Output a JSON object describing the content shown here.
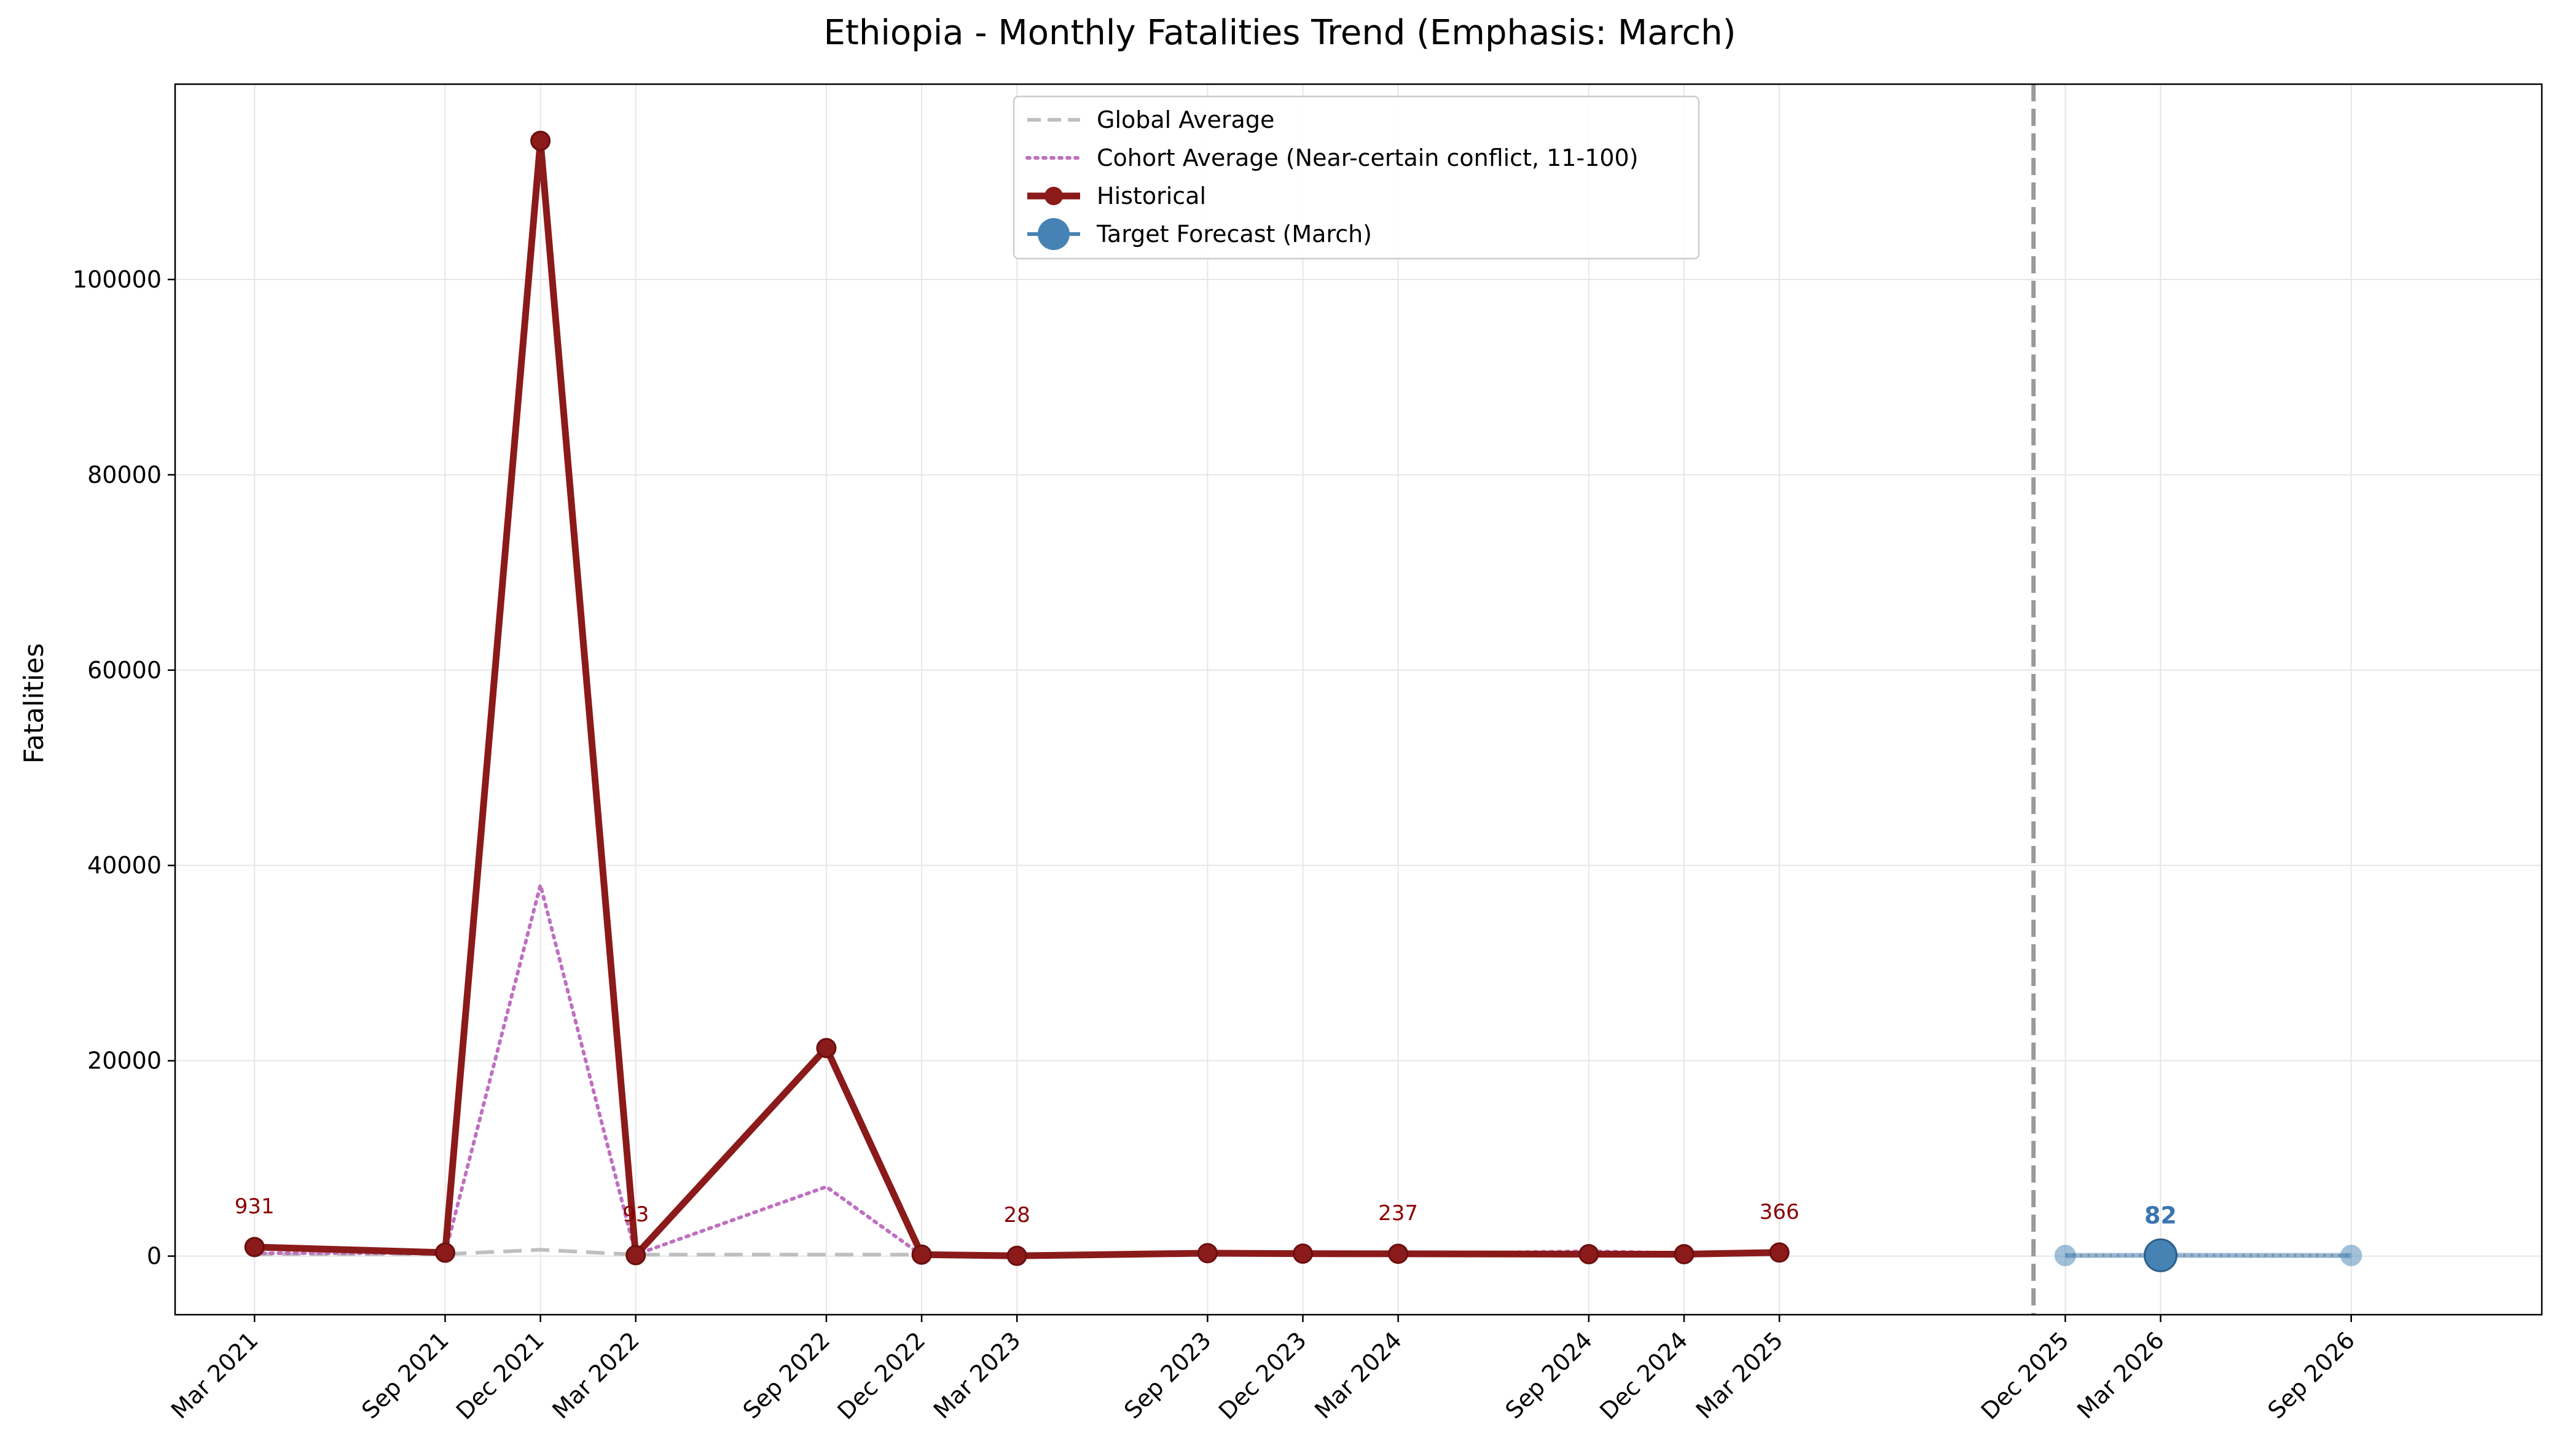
{
  "chart_data": {
    "type": "line",
    "title": "Ethiopia - Monthly Fatalities Trend (Emphasis: March)",
    "xlabel": "",
    "ylabel": "Fatalities",
    "ylim": [
      -6000,
      120000
    ],
    "y_ticks": [
      0,
      20000,
      40000,
      60000,
      80000,
      100000
    ],
    "grid": true,
    "legend_position": "top-center",
    "x_dates": [
      "2021-03",
      "2021-09",
      "2021-12",
      "2022-03",
      "2022-09",
      "2022-12",
      "2023-03",
      "2023-09",
      "2023-12",
      "2024-03",
      "2024-09",
      "2024-12",
      "2025-03",
      "2025-12",
      "2026-03",
      "2026-09"
    ],
    "x_tick_labels": [
      "Mar 2021",
      "Sep 2021",
      "Dec 2021",
      "Mar 2022",
      "Sep 2022",
      "Dec 2022",
      "Mar 2023",
      "Sep 2023",
      "Dec 2023",
      "Mar 2024",
      "Sep 2024",
      "Dec 2024",
      "Mar 2025",
      "Dec 2025",
      "Mar 2026",
      "Sep 2026"
    ],
    "forecast_start": "2025-11",
    "series": [
      {
        "name": "Global Average",
        "style": "dashed",
        "color": "#bfbfbf",
        "x": [
          "2021-03",
          "2021-09",
          "2021-12",
          "2022-03",
          "2022-09",
          "2022-12",
          "2023-03",
          "2023-09",
          "2023-12",
          "2024-03",
          "2024-09",
          "2024-12",
          "2025-03"
        ],
        "values": [
          200,
          200,
          650,
          150,
          150,
          150,
          150,
          250,
          200,
          250,
          250,
          200,
          200
        ]
      },
      {
        "name": "Cohort Average (Near-certain conflict, 11-100)",
        "style": "dotted",
        "color": "#c070c0",
        "x": [
          "2021-03",
          "2021-09",
          "2021-12",
          "2022-03",
          "2022-09",
          "2022-12",
          "2023-03",
          "2023-09",
          "2023-12",
          "2024-03",
          "2024-09",
          "2024-12",
          "2025-03"
        ],
        "values": [
          300,
          300,
          38000,
          150,
          7100,
          100,
          50,
          250,
          200,
          200,
          500,
          300,
          300
        ]
      },
      {
        "name": "Historical",
        "style": "solid",
        "color": "#8b1a1a",
        "x": [
          "2021-03",
          "2021-09",
          "2021-12",
          "2022-03",
          "2022-09",
          "2022-12",
          "2023-03",
          "2023-09",
          "2023-12",
          "2024-03",
          "2024-09",
          "2024-12",
          "2025-03"
        ],
        "values": [
          931,
          350,
          114200,
          93,
          21300,
          150,
          28,
          300,
          250,
          237,
          200,
          200,
          366
        ]
      },
      {
        "name": "Target Forecast (March)",
        "style": "solid",
        "color": "#4682b4",
        "x": [
          "2025-12",
          "2026-03",
          "2026-09"
        ],
        "values": [
          60,
          82,
          60
        ]
      }
    ],
    "annotations": [
      {
        "x": "2021-03",
        "text": "931",
        "color": "#8b0000",
        "y": 931
      },
      {
        "x": "2022-03",
        "text": "93",
        "color": "#8b0000",
        "y": 93
      },
      {
        "x": "2023-03",
        "text": "28",
        "color": "#8b0000",
        "y": 28
      },
      {
        "x": "2024-03",
        "text": "237",
        "color": "#8b0000",
        "y": 237
      },
      {
        "x": "2025-03",
        "text": "366",
        "color": "#8b0000",
        "y": 366
      },
      {
        "x": "2026-03",
        "text": "82",
        "color": "#3a75b0",
        "y": 82,
        "bold": true
      }
    ]
  }
}
